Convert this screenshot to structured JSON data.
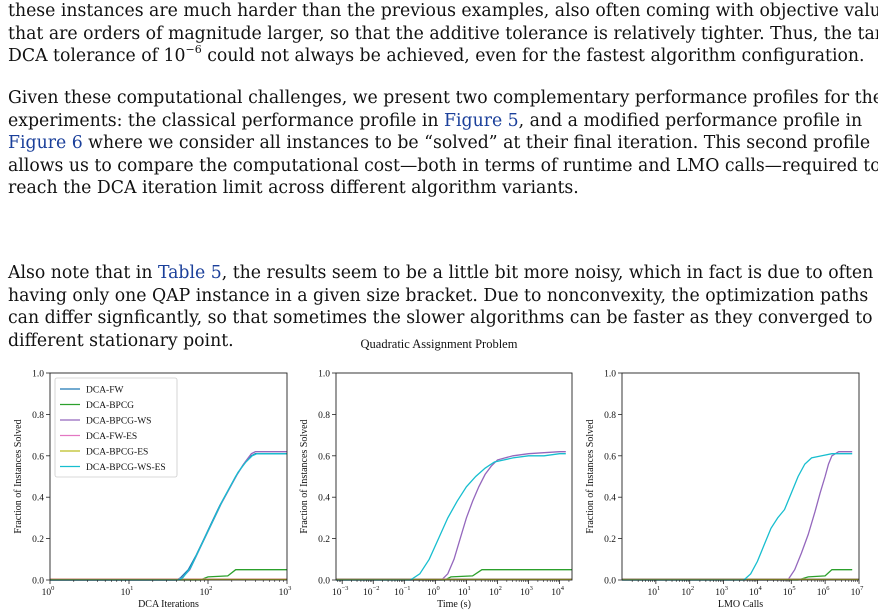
{
  "paragraphs": [
    {
      "lines": [
        [
          {
            "t": "these instances are much harder than the previous examples, also often coming with objective values"
          }
        ],
        [
          {
            "t": "that are orders of magnitude larger, so that the additive tolerance is relatively tighter. Thus, the target"
          }
        ],
        [
          {
            "t": "DCA tolerance of 10"
          },
          {
            "t": "−6",
            "sup": true
          },
          {
            "t": " could not always be achieved, even for the fastest algorithm configuration."
          }
        ]
      ]
    },
    {
      "lines": [
        [
          {
            "t": "Given these computational challenges, we present two complementary performance profiles for these"
          }
        ],
        [
          {
            "t": "experiments: the classical performance profile in "
          },
          {
            "t": "Figure 5",
            "link": true
          },
          {
            "t": ", and a modified performance profile in"
          }
        ],
        [
          {
            "t": "Figure 6",
            "link": true
          },
          {
            "t": " where we consider all instances to be “solved” at their final iteration. This second profile"
          }
        ],
        [
          {
            "t": "allows us to compare the computational cost—both in terms of runtime and LMO calls—required to"
          }
        ],
        [
          {
            "t": "reach the DCA iteration limit across different algorithm variants."
          }
        ]
      ]
    },
    {
      "lines": [
        [
          {
            "t": "Also note that in "
          },
          {
            "t": "Table 5",
            "link": true
          },
          {
            "t": ", the results seem to be a little bit more noisy, which in fact is due to often"
          }
        ],
        [
          {
            "t": "having only one QAP instance in a given size bracket. Due to nonconvexity, the optimization paths"
          }
        ],
        [
          {
            "t": "can differ signficantly, so that sometimes the slower algorithms can be faster as they converged to a"
          }
        ],
        [
          {
            "t": "different stationary point."
          }
        ]
      ]
    }
  ],
  "chart_data": {
    "type": "line",
    "title": "Quadratic Assignment Problem",
    "legend": {
      "placement": "top-left",
      "panel": 0
    },
    "series_styles": [
      {
        "name": "DCA-FW",
        "color": "#1f77b4"
      },
      {
        "name": "DCA-BPCG",
        "color": "#2ca02c"
      },
      {
        "name": "DCA-BPCG-WS",
        "color": "#9467bd"
      },
      {
        "name": "DCA-FW-ES",
        "color": "#e377c2"
      },
      {
        "name": "DCA-BPCG-ES",
        "color": "#bcbd22"
      },
      {
        "name": "DCA-BPCG-WS-ES",
        "color": "#17becf"
      }
    ],
    "panels": [
      {
        "xlabel": "DCA Iterations",
        "ylabel": "Fraction of Instances Solved",
        "xscale": "log",
        "xlim_exp": [
          0,
          3
        ],
        "ylim": [
          0,
          1.0
        ],
        "xticks": [
          {
            "base": "10",
            "exp": "0",
            "e": 0
          },
          {
            "base": "10",
            "exp": "1",
            "e": 1
          },
          {
            "base": "10",
            "exp": "2",
            "e": 2
          },
          {
            "base": "10",
            "exp": "3",
            "e": 3
          }
        ],
        "yticks": [
          "0.0",
          "0.2",
          "0.4",
          "0.6",
          "0.8",
          "1.0"
        ],
        "series": [
          {
            "name": "DCA-FW",
            "x_exp": [
              0,
              1.6,
              1.65,
              1.75,
              1.85,
              1.95,
              2.05,
              2.15,
              2.25,
              2.35,
              2.45,
              2.55,
              2.6,
              3
            ],
            "y": [
              0,
              0,
              0.01,
              0.05,
              0.12,
              0.2,
              0.28,
              0.36,
              0.43,
              0.5,
              0.56,
              0.6,
              0.61,
              0.61
            ]
          },
          {
            "name": "DCA-BPCG",
            "x_exp": [
              0,
              1.9,
              2.0,
              2.25,
              2.35,
              3
            ],
            "y": [
              0,
              0,
              0.015,
              0.02,
              0.05,
              0.05
            ]
          },
          {
            "name": "DCA-BPCG-WS",
            "x_exp": [
              0,
              1.6,
              1.67,
              1.77,
              1.87,
              1.97,
              2.07,
              2.17,
              2.27,
              2.37,
              2.47,
              2.55,
              2.6,
              3
            ],
            "y": [
              0,
              0,
              0.01,
              0.05,
              0.13,
              0.21,
              0.29,
              0.37,
              0.44,
              0.51,
              0.57,
              0.61,
              0.62,
              0.62
            ]
          },
          {
            "name": "DCA-FW-ES",
            "x_exp": [
              0,
              3
            ],
            "y": [
              0.005,
              0.005
            ]
          },
          {
            "name": "DCA-BPCG-ES",
            "x_exp": [
              0,
              3
            ],
            "y": [
              0.003,
              0.003
            ]
          },
          {
            "name": "DCA-BPCG-WS-ES",
            "x_exp": [
              0,
              1.62,
              1.68,
              1.78,
              1.88,
              1.98,
              2.08,
              2.18,
              2.28,
              2.38,
              2.48,
              2.56,
              2.62,
              3
            ],
            "y": [
              0,
              0,
              0.01,
              0.06,
              0.14,
              0.22,
              0.3,
              0.38,
              0.45,
              0.52,
              0.57,
              0.6,
              0.61,
              0.61
            ]
          }
        ]
      },
      {
        "xlabel": "Time (s)",
        "ylabel": "Fraction of Instances Solved",
        "xscale": "log",
        "xlim_exp": [
          -3.2,
          4.4
        ],
        "ylim": [
          0,
          1.0
        ],
        "xticks": [
          {
            "base": "10",
            "exp": "−3",
            "e": -3
          },
          {
            "base": "10",
            "exp": "−2",
            "e": -2
          },
          {
            "base": "10",
            "exp": "−1",
            "e": -1
          },
          {
            "base": "10",
            "exp": "0",
            "e": 0
          },
          {
            "base": "10",
            "exp": "1",
            "e": 1
          },
          {
            "base": "10",
            "exp": "2",
            "e": 2
          },
          {
            "base": "10",
            "exp": "3",
            "e": 3
          },
          {
            "base": "10",
            "exp": "4",
            "e": 4
          }
        ],
        "yticks": [
          "0.0",
          "0.2",
          "0.4",
          "0.6",
          "0.8",
          "1.0"
        ],
        "series": [
          {
            "name": "DCA-FW",
            "x_exp": [
              -3.2,
              4.4
            ],
            "y": [
              0.005,
              0.005
            ]
          },
          {
            "name": "DCA-BPCG",
            "x_exp": [
              -3.2,
              0.3,
              0.5,
              1.2,
              1.5,
              4.4
            ],
            "y": [
              0,
              0,
              0.015,
              0.02,
              0.05,
              0.05
            ]
          },
          {
            "name": "DCA-BPCG-WS",
            "x_exp": [
              -3.2,
              0.2,
              0.4,
              0.6,
              0.8,
              1.0,
              1.2,
              1.4,
              1.6,
              1.8,
              2.0,
              2.5,
              3.0,
              4.0,
              4.2
            ],
            "y": [
              0,
              0,
              0.03,
              0.1,
              0.2,
              0.3,
              0.38,
              0.45,
              0.51,
              0.55,
              0.58,
              0.6,
              0.61,
              0.62,
              0.62
            ]
          },
          {
            "name": "DCA-FW-ES",
            "x_exp": [
              -3.2,
              4.4
            ],
            "y": [
              0.004,
              0.004
            ]
          },
          {
            "name": "DCA-BPCG-ES",
            "x_exp": [
              -3.2,
              4.4
            ],
            "y": [
              0.003,
              0.003
            ]
          },
          {
            "name": "DCA-BPCG-WS-ES",
            "x_exp": [
              -3.2,
              -0.8,
              -0.5,
              -0.2,
              0.1,
              0.4,
              0.7,
              1.0,
              1.3,
              1.6,
              1.9,
              2.5,
              3.0,
              3.5,
              4.0,
              4.2
            ],
            "y": [
              0,
              0,
              0.03,
              0.1,
              0.2,
              0.3,
              0.38,
              0.45,
              0.5,
              0.54,
              0.57,
              0.59,
              0.6,
              0.6,
              0.61,
              0.61
            ]
          }
        ]
      },
      {
        "xlabel": "LMO Calls",
        "ylabel": "Fraction of Instances Solved",
        "xscale": "log",
        "xlim_exp": [
          0,
          7
        ],
        "ylim": [
          0,
          1.0
        ],
        "xticks": [
          {
            "base": "10",
            "exp": "1",
            "e": 1
          },
          {
            "base": "10",
            "exp": "2",
            "e": 2
          },
          {
            "base": "10",
            "exp": "3",
            "e": 3
          },
          {
            "base": "10",
            "exp": "4",
            "e": 4
          },
          {
            "base": "10",
            "exp": "5",
            "e": 5
          },
          {
            "base": "10",
            "exp": "6",
            "e": 6
          },
          {
            "base": "10",
            "exp": "7",
            "e": 7
          }
        ],
        "yticks": [
          "0.0",
          "0.2",
          "0.4",
          "0.6",
          "0.8",
          "1.0"
        ],
        "series": [
          {
            "name": "DCA-FW",
            "x_exp": [
              0,
              7
            ],
            "y": [
              0.005,
              0.005
            ]
          },
          {
            "name": "DCA-BPCG",
            "x_exp": [
              0,
              5.2,
              5.5,
              6.0,
              6.2,
              6.8
            ],
            "y": [
              0,
              0,
              0.015,
              0.02,
              0.05,
              0.05
            ]
          },
          {
            "name": "DCA-BPCG-WS",
            "x_exp": [
              0,
              4.9,
              5.1,
              5.3,
              5.5,
              5.7,
              5.85,
              6.0,
              6.1,
              6.2,
              6.4,
              6.8
            ],
            "y": [
              0,
              0,
              0.05,
              0.13,
              0.22,
              0.33,
              0.42,
              0.5,
              0.56,
              0.6,
              0.62,
              0.62
            ]
          },
          {
            "name": "DCA-FW-ES",
            "x_exp": [
              0,
              7
            ],
            "y": [
              0.004,
              0.004
            ]
          },
          {
            "name": "DCA-BPCG-ES",
            "x_exp": [
              0,
              7
            ],
            "y": [
              0.003,
              0.003
            ]
          },
          {
            "name": "DCA-BPCG-WS-ES",
            "x_exp": [
              0,
              3.6,
              3.8,
              4.0,
              4.2,
              4.4,
              4.6,
              4.8,
              5.0,
              5.2,
              5.4,
              5.6,
              5.9,
              6.2,
              6.8
            ],
            "y": [
              0,
              0,
              0.03,
              0.09,
              0.17,
              0.25,
              0.3,
              0.34,
              0.42,
              0.5,
              0.56,
              0.59,
              0.6,
              0.61,
              0.61
            ]
          }
        ]
      }
    ]
  }
}
